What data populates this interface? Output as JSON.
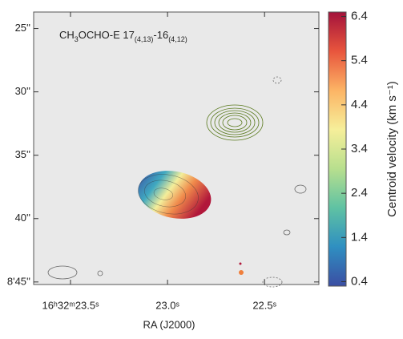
{
  "chart_data": {
    "type": "image",
    "title": [
      "CH",
      "3",
      "OCHO-E 17",
      "(4,13)",
      "-16",
      "(4,12)"
    ],
    "xlabel": "RA (J2000)",
    "xlim": [
      23.69,
      22.22
    ],
    "xticks": [
      {
        "value": 23.5,
        "label": "16ʰ32ᵐ23.5ˢ"
      },
      {
        "value": 23.0,
        "label": "23.0ˢ"
      },
      {
        "value": 22.5,
        "label": "22.5ˢ"
      }
    ],
    "ylim": [
      23.7,
      45.2
    ],
    "yticks": [
      {
        "value": 25,
        "label": "25''"
      },
      {
        "value": 30,
        "label": "30''"
      },
      {
        "value": 35,
        "label": "35''"
      },
      {
        "value": 40,
        "label": "40''"
      },
      {
        "value": 45,
        "label": "8'45''"
      }
    ],
    "colorbar": {
      "label": "Centroid velocity (km s⁻¹)",
      "clim": [
        0.3,
        6.5
      ],
      "ticks": [
        0.4,
        1.4,
        2.4,
        3.4,
        4.4,
        5.4,
        6.4
      ],
      "colormap": [
        "#3b4ea3",
        "#2f8fc1",
        "#5fc2a3",
        "#b8df8e",
        "#f6ef9a",
        "#fcb465",
        "#e8553d",
        "#a3123b"
      ]
    }
  }
}
